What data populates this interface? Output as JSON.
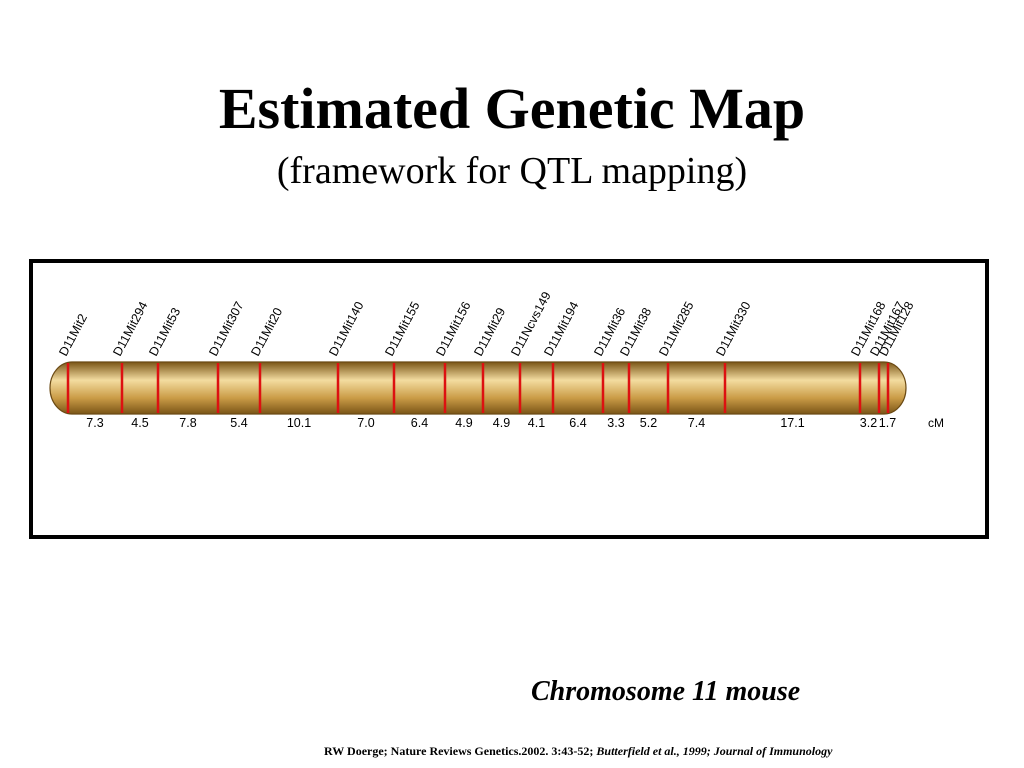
{
  "title": "Estimated Genetic Map",
  "subtitle": "(framework for QTL mapping)",
  "map": {
    "markers": [
      "D11Mit2",
      "D11Mit294",
      "D11Mit53",
      "D11Mit307",
      "D11Mit20",
      "D11Mit140",
      "D11Mit155",
      "D11Mit156",
      "D11Mit29",
      "D11Ncvs149",
      "D11Mit194",
      "D11Mit36",
      "D11Mit38",
      "D11Mit285",
      "D11Mit330",
      "D11Mit168",
      "D11Mit167",
      "D11Mit128"
    ],
    "distances": [
      "7.3",
      "4.5",
      "7.8",
      "5.4",
      "10.1",
      "7.0",
      "6.4",
      "4.9",
      "4.9",
      "4.1",
      "6.4",
      "3.3",
      "5.2",
      "7.4",
      "17.1",
      "3.2",
      "1.7"
    ],
    "unit": "cM",
    "colors": {
      "chromosome_light": "#f3dca0",
      "chromosome_mid": "#c99a45",
      "chromosome_dark": "#7a5516",
      "marker_line": "#dd1111"
    }
  },
  "caption": "Chromosome 11 mouse",
  "citation": {
    "main": "RW Doerge; Nature Reviews Genetics.2002. 3:43-52;",
    "secondary": "Butterfield et al., 1999; Journal of Immunology"
  }
}
